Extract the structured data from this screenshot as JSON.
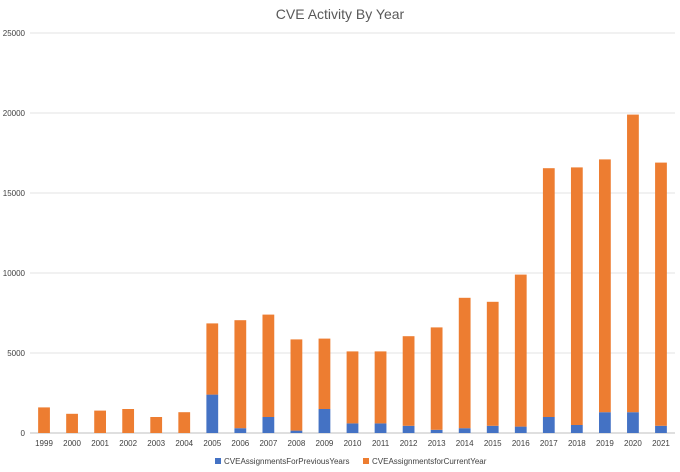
{
  "chart_data": {
    "type": "bar",
    "stacked": true,
    "title": "CVE Activity By Year",
    "xlabel": "",
    "ylabel": "",
    "ylim": [
      0,
      25000
    ],
    "yticks": [
      0,
      5000,
      10000,
      15000,
      20000,
      25000
    ],
    "grid": true,
    "legend_position": "bottom",
    "categories": [
      "1999",
      "2000",
      "2001",
      "2002",
      "2003",
      "2004",
      "2005",
      "2006",
      "2007",
      "2008",
      "2009",
      "2010",
      "2011",
      "2012",
      "2013",
      "2014",
      "2015",
      "2016",
      "2017",
      "2018",
      "2019",
      "2020",
      "2021"
    ],
    "series": [
      {
        "name": "CVEAssignmentsForPreviousYears",
        "color": "#4472c4",
        "values": [
          0,
          0,
          0,
          0,
          0,
          0,
          2400,
          300,
          1000,
          150,
          1500,
          600,
          600,
          450,
          200,
          300,
          450,
          400,
          1000,
          500,
          1300,
          1300,
          450
        ]
      },
      {
        "name": "CVEAssignmentsforCurrentYear",
        "color": "#ed7d31",
        "values": [
          1600,
          1200,
          1400,
          1500,
          1000,
          1300,
          4450,
          6750,
          6400,
          5700,
          4400,
          4500,
          4500,
          5600,
          6400,
          8150,
          7750,
          9500,
          15550,
          16100,
          15800,
          18600,
          16450
        ]
      }
    ]
  }
}
